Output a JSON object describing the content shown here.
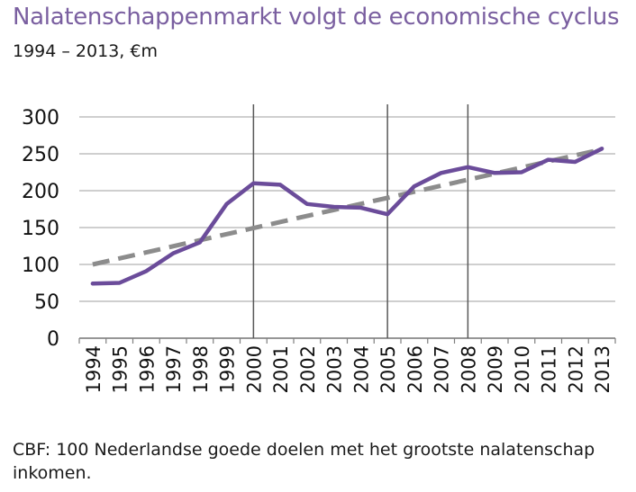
{
  "header": {
    "title": "Nalatenschappenmarkt volgt de economische cyclus",
    "subtitle": "1994 – 2013, €m"
  },
  "footer": {
    "source": "CBF: 100 Nederlandse goede doelen met het grootste nalatenschap inkomen."
  },
  "colors": {
    "title": "#7a5fa0",
    "actual_line": "#6b4c9a",
    "trend_line": "#8c8c8c",
    "grid": "#bfbfbf",
    "marker_line": "#595959"
  },
  "chart_data": {
    "type": "line",
    "title": "Nalatenschappenmarkt volgt de economische cyclus",
    "subtitle": "1994 – 2013, €m",
    "xlabel": "",
    "ylabel": "",
    "categories": [
      "1994",
      "1995",
      "1996",
      "1997",
      "1998",
      "1999",
      "2000",
      "2001",
      "2002",
      "2003",
      "2004",
      "2005",
      "2006",
      "2007",
      "2008",
      "2009",
      "2010",
      "2011",
      "2012",
      "2013"
    ],
    "ylim": [
      0,
      300
    ],
    "yticks": [
      0,
      50,
      100,
      150,
      200,
      250,
      300
    ],
    "grid": true,
    "legend": "none",
    "vertical_markers": [
      "2000",
      "2005",
      "2008"
    ],
    "series": [
      {
        "style": "solid",
        "color": "#6b4c9a",
        "values": [
          74,
          75,
          91,
          115,
          130,
          182,
          210,
          208,
          182,
          178,
          177,
          168,
          206,
          224,
          232,
          224,
          225,
          242,
          239,
          257
        ]
      },
      {
        "style": "dashed",
        "color": "#8c8c8c",
        "values": [
          100,
          108.2,
          116.4,
          124.6,
          132.8,
          141.1,
          149.3,
          157.5,
          165.7,
          173.9,
          182.1,
          190.3,
          198.5,
          206.7,
          214.9,
          223.2,
          231.4,
          239.6,
          247.8,
          256
        ]
      }
    ]
  }
}
